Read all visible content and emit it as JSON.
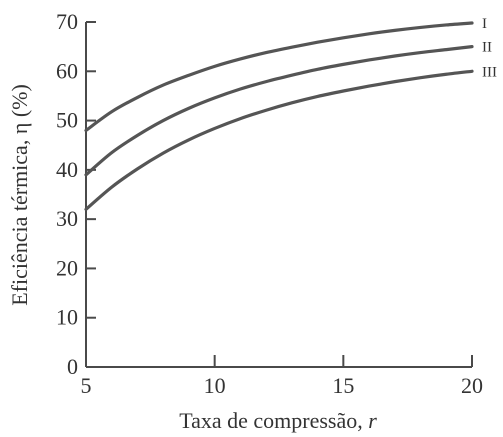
{
  "chart_data": {
    "type": "line",
    "xlabel_prefix": "Taxa de compressão, ",
    "xlabel_symbol": "r",
    "ylabel": "Eficiência térmica, η (%)",
    "xlim": [
      5,
      20
    ],
    "ylim": [
      0,
      70
    ],
    "xticks": [
      5,
      10,
      15,
      20
    ],
    "yticks": [
      0,
      10,
      20,
      30,
      40,
      50,
      60,
      70
    ],
    "x": [
      5,
      6,
      7,
      8,
      9,
      10,
      11,
      12,
      13,
      14,
      15,
      16,
      17,
      18,
      19,
      20
    ],
    "series": [
      {
        "name": "I",
        "values": [
          48,
          51.8,
          54.7,
          57.2,
          59.2,
          61.0,
          62.5,
          63.8,
          64.9,
          65.9,
          66.8,
          67.6,
          68.3,
          68.9,
          69.4,
          69.8
        ],
        "color": "#555555"
      },
      {
        "name": "II",
        "values": [
          39,
          43.5,
          47.0,
          50.0,
          52.5,
          54.6,
          56.4,
          57.9,
          59.2,
          60.4,
          61.4,
          62.3,
          63.1,
          63.8,
          64.4,
          65.0
        ],
        "color": "#555555"
      },
      {
        "name": "III",
        "values": [
          32,
          36.5,
          40.2,
          43.4,
          46.1,
          48.4,
          50.4,
          52.1,
          53.6,
          54.9,
          56.0,
          57.0,
          57.9,
          58.7,
          59.4,
          60.0
        ],
        "color": "#555555"
      }
    ],
    "grid": false,
    "legend": "none"
  }
}
